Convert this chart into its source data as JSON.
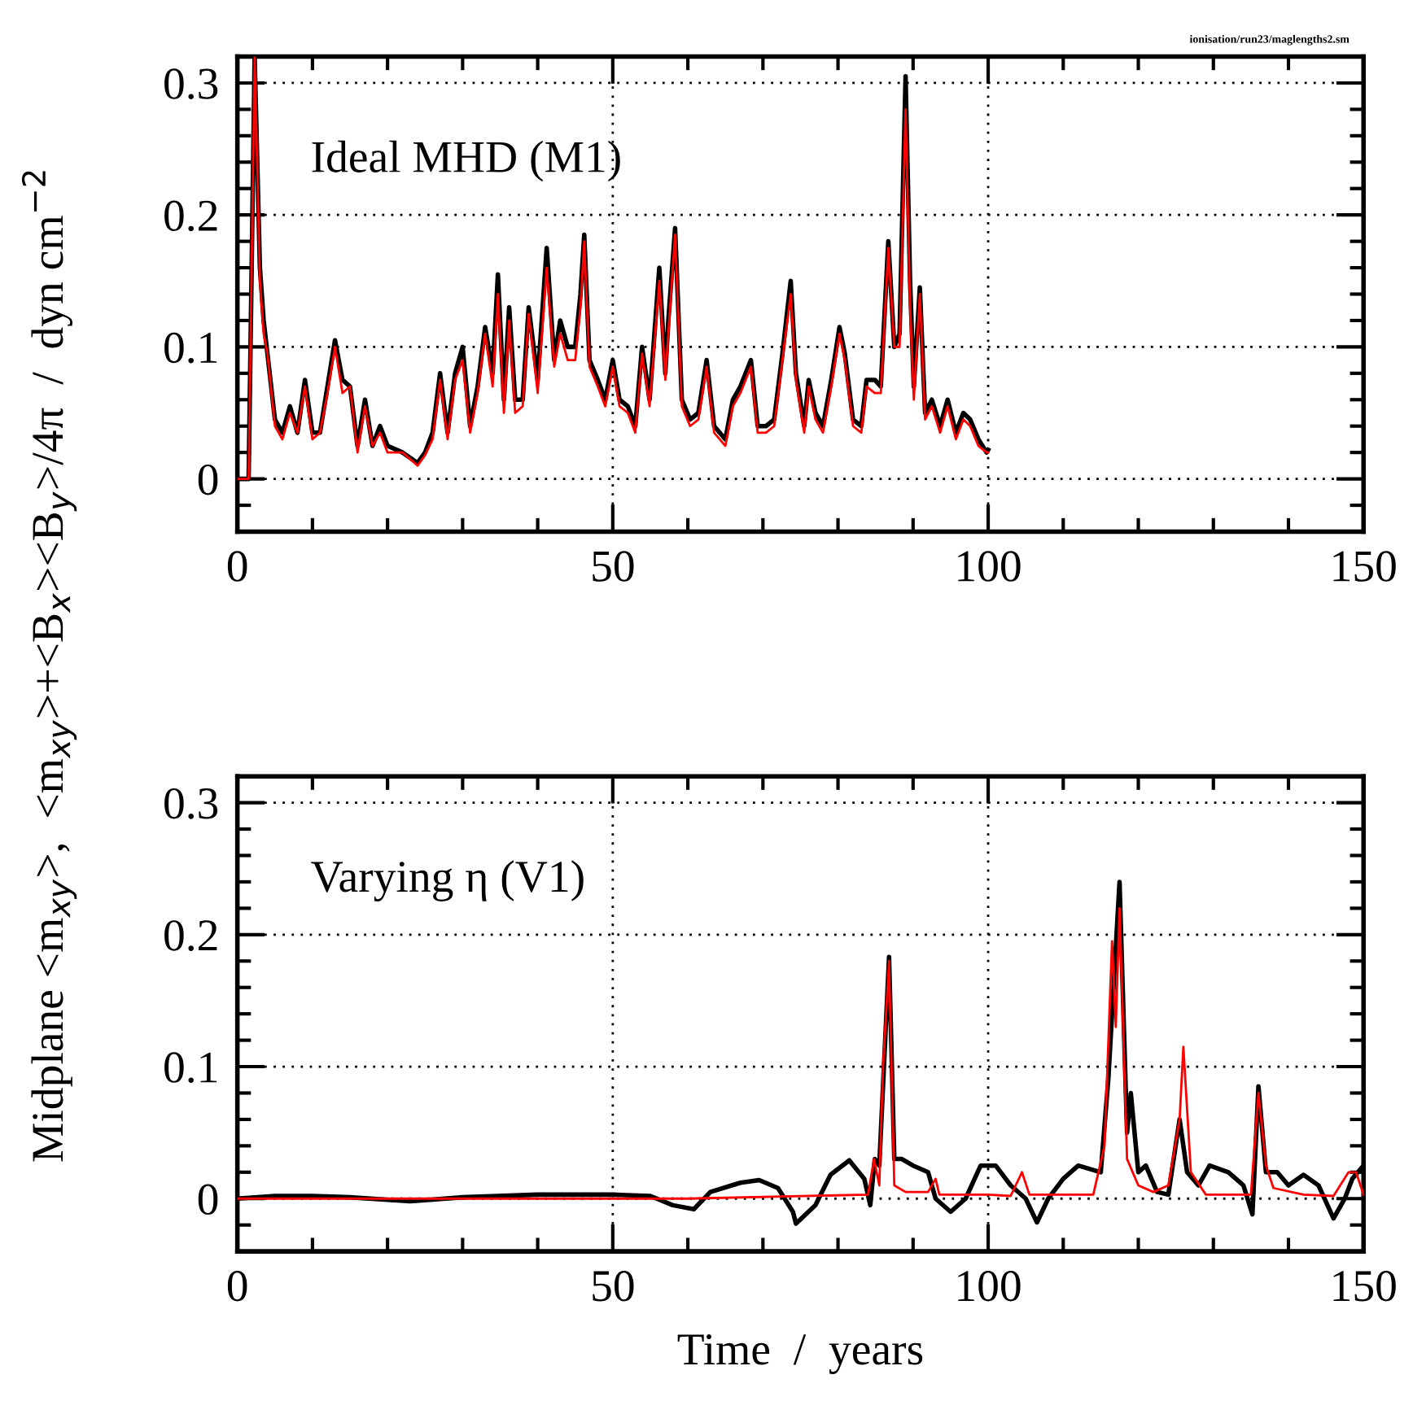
{
  "chart_data": [
    {
      "type": "line",
      "ylabel": "Midplane <m$_{xy}$>,  <m$_{xy}$>+<B$_{x}$><B$_{y}$>/4π  /  dyn cm$^{−2}$",
      "annotations": [
        "Ideal MHD (M1)",
        "ionisation/run23/maglengths2.sm"
      ],
      "xlim": [
        0,
        150
      ],
      "ylim": [
        -0.04,
        0.32
      ],
      "xticks": [
        0,
        50,
        100,
        150
      ],
      "yticks": [
        0,
        0.1,
        0.2,
        0.3
      ],
      "grid": true,
      "marker": "none",
      "line_style": "solid",
      "series": [
        {
          "color": "#000000",
          "x": [
            0,
            1.5,
            2.3,
            3,
            3.5,
            4,
            5,
            6,
            7,
            8,
            9,
            10,
            11,
            12,
            13,
            14,
            15,
            16,
            17,
            18,
            19,
            20,
            22,
            24,
            25,
            26,
            27,
            28,
            29,
            30,
            31,
            32,
            33,
            34,
            34.7,
            35.5,
            36.2,
            37,
            38,
            38.8,
            40,
            41.2,
            42.2,
            43,
            44,
            45,
            45.7,
            46.2,
            46.9,
            48,
            49,
            50,
            50.9,
            52,
            53,
            53.9,
            54.9,
            56.2,
            57,
            57.4,
            58.3,
            59.2,
            60.3,
            61.4,
            62.5,
            63.5,
            65,
            66,
            67,
            68.4,
            69.3,
            70.4,
            71.5,
            72.6,
            73.7,
            74.4,
            75.5,
            76.1,
            77,
            78,
            79.1,
            80.2,
            80.9,
            82,
            83.1,
            83.8,
            84.9,
            85.7,
            86.7,
            87.5,
            88.2,
            89,
            89.6,
            90.1,
            90.9,
            91.6,
            92.5,
            93.6,
            94.6,
            95.7,
            96.7,
            97.6,
            98.7,
            99.8,
            100
          ],
          "values": [
            0,
            0,
            0.32,
            0.16,
            0.12,
            0.095,
            0.045,
            0.035,
            0.055,
            0.035,
            0.075,
            0.035,
            0.035,
            0.07,
            0.105,
            0.075,
            0.07,
            0.025,
            0.06,
            0.025,
            0.04,
            0.025,
            0.02,
            0.012,
            0.02,
            0.035,
            0.08,
            0.035,
            0.08,
            0.1,
            0.04,
            0.07,
            0.115,
            0.08,
            0.155,
            0.06,
            0.13,
            0.06,
            0.06,
            0.13,
            0.075,
            0.175,
            0.09,
            0.12,
            0.1,
            0.1,
            0.14,
            0.185,
            0.09,
            0.075,
            0.06,
            0.09,
            0.06,
            0.055,
            0.04,
            0.1,
            0.06,
            0.16,
            0.08,
            0.12,
            0.19,
            0.06,
            0.045,
            0.05,
            0.09,
            0.04,
            0.03,
            0.06,
            0.07,
            0.09,
            0.04,
            0.04,
            0.045,
            0.095,
            0.15,
            0.08,
            0.04,
            0.075,
            0.05,
            0.04,
            0.075,
            0.115,
            0.095,
            0.045,
            0.04,
            0.075,
            0.075,
            0.07,
            0.18,
            0.1,
            0.11,
            0.305,
            0.15,
            0.07,
            0.145,
            0.05,
            0.06,
            0.04,
            0.06,
            0.035,
            0.05,
            0.045,
            0.03,
            0.02,
            0.022
          ]
        },
        {
          "color": "#ff0000",
          "x": [
            0,
            1.5,
            2.3,
            3,
            3.5,
            4,
            5,
            6,
            7,
            8,
            9,
            10,
            11,
            12,
            13,
            14,
            15,
            16,
            17,
            18,
            19,
            20,
            22,
            24,
            25,
            26,
            27,
            28,
            29,
            30,
            31,
            32,
            33,
            34,
            34.7,
            35.5,
            36.2,
            37,
            38,
            38.8,
            40,
            41.2,
            42.2,
            43,
            44,
            45,
            45.7,
            46.2,
            46.9,
            48,
            49,
            50,
            50.9,
            52,
            53,
            53.9,
            54.9,
            56.2,
            57,
            57.4,
            58.3,
            59.2,
            60.3,
            61.4,
            62.5,
            63.5,
            65,
            66,
            67,
            68.4,
            69.3,
            70.4,
            71.5,
            72.6,
            73.7,
            74.4,
            75.5,
            76.1,
            77,
            78,
            79.1,
            80.2,
            80.9,
            82,
            83.1,
            83.8,
            84.9,
            85.7,
            86.7,
            87.5,
            88.2,
            89,
            89.6,
            90.1,
            90.9,
            91.6,
            92.5,
            93.6,
            94.6,
            95.7,
            96.7,
            97.6,
            98.7,
            99.8,
            100
          ],
          "values": [
            0,
            0,
            0.32,
            0.15,
            0.11,
            0.095,
            0.04,
            0.03,
            0.05,
            0.035,
            0.07,
            0.03,
            0.035,
            0.065,
            0.1,
            0.065,
            0.07,
            0.02,
            0.055,
            0.025,
            0.035,
            0.02,
            0.02,
            0.01,
            0.018,
            0.03,
            0.075,
            0.03,
            0.075,
            0.09,
            0.035,
            0.065,
            0.11,
            0.07,
            0.14,
            0.05,
            0.12,
            0.05,
            0.055,
            0.125,
            0.065,
            0.16,
            0.085,
            0.11,
            0.09,
            0.09,
            0.13,
            0.18,
            0.085,
            0.07,
            0.055,
            0.085,
            0.055,
            0.05,
            0.035,
            0.095,
            0.055,
            0.15,
            0.075,
            0.11,
            0.185,
            0.055,
            0.04,
            0.045,
            0.085,
            0.035,
            0.025,
            0.055,
            0.065,
            0.085,
            0.035,
            0.035,
            0.04,
            0.09,
            0.14,
            0.075,
            0.035,
            0.07,
            0.045,
            0.035,
            0.07,
            0.11,
            0.09,
            0.04,
            0.035,
            0.07,
            0.065,
            0.065,
            0.175,
            0.1,
            0.1,
            0.28,
            0.13,
            0.06,
            0.14,
            0.045,
            0.055,
            0.035,
            0.055,
            0.03,
            0.045,
            0.04,
            0.025,
            0.02,
            0.02
          ]
        }
      ]
    },
    {
      "type": "line",
      "xlabel": "Time  /  years",
      "annotations": [
        "Varying η (V1)"
      ],
      "xlim": [
        0,
        150
      ],
      "ylim": [
        -0.04,
        0.32
      ],
      "xticks": [
        0,
        50,
        100,
        150
      ],
      "yticks": [
        0,
        0.1,
        0.2,
        0.3
      ],
      "grid": true,
      "marker": "none",
      "line_style": "solid",
      "series": [
        {
          "color": "#000000",
          "x": [
            0,
            5,
            10,
            15,
            23,
            30,
            40,
            50,
            55,
            58,
            60.8,
            63,
            67,
            69.5,
            72,
            74,
            74.4,
            77,
            79,
            81.5,
            83.5,
            84.3,
            84.9,
            85.5,
            86.8,
            87.5,
            88.5,
            90,
            92,
            93,
            95,
            97,
            99,
            101,
            103,
            105,
            106.5,
            108,
            110,
            112,
            115,
            116,
            117.5,
            118.5,
            119,
            120,
            121,
            122.5,
            124,
            125.5,
            126.5,
            128,
            129.5,
            132,
            134,
            135.2,
            136,
            137,
            138.5,
            140,
            142,
            144,
            146,
            147.5,
            148.5,
            150
          ],
          "values": [
            0,
            0.002,
            0.002,
            0.001,
            -0.002,
            0.001,
            0.003,
            0.003,
            0.002,
            -0.005,
            -0.008,
            0.005,
            0.012,
            0.014,
            0.008,
            -0.01,
            -0.019,
            -0.005,
            0.018,
            0.029,
            0.015,
            -0.005,
            0.03,
            0.025,
            0.183,
            0.03,
            0.03,
            0.025,
            0.02,
            0,
            -0.01,
            0,
            0.025,
            0.025,
            0.01,
            0,
            -0.018,
            0,
            0.015,
            0.025,
            0.02,
            0.09,
            0.24,
            0.05,
            0.08,
            0.02,
            0.025,
            0.005,
            0.003,
            0.06,
            0.02,
            0.01,
            0.025,
            0.02,
            0.01,
            -0.012,
            0.085,
            0.02,
            0.02,
            0.01,
            0.018,
            0.01,
            -0.015,
            0,
            0.015,
            0.025
          ]
        },
        {
          "color": "#ff0000",
          "x": [
            0,
            20,
            40,
            60,
            84,
            84.8,
            85.5,
            86,
            86.8,
            87.5,
            89,
            92,
            93,
            93.5,
            96,
            100,
            103,
            104.5,
            105.5,
            110,
            114,
            115.5,
            116.5,
            117,
            117.5,
            118.5,
            120,
            122,
            124,
            125.5,
            126,
            127,
            129,
            133,
            135,
            136,
            137,
            138,
            142,
            146,
            148,
            149,
            150
          ],
          "values": [
            0,
            0,
            0,
            0,
            0.003,
            0.03,
            0.01,
            0.1,
            0.18,
            0.01,
            0.005,
            0.005,
            0.015,
            0.003,
            0.003,
            0.003,
            0.002,
            0.02,
            0.003,
            0.003,
            0.003,
            0.04,
            0.195,
            0.13,
            0.22,
            0.03,
            0.01,
            0.005,
            0.01,
            0.06,
            0.115,
            0.02,
            0.003,
            0.003,
            0.003,
            0.08,
            0.025,
            0.008,
            0.003,
            0.002,
            0.02,
            0.02,
            0.003
          ]
        }
      ]
    }
  ]
}
